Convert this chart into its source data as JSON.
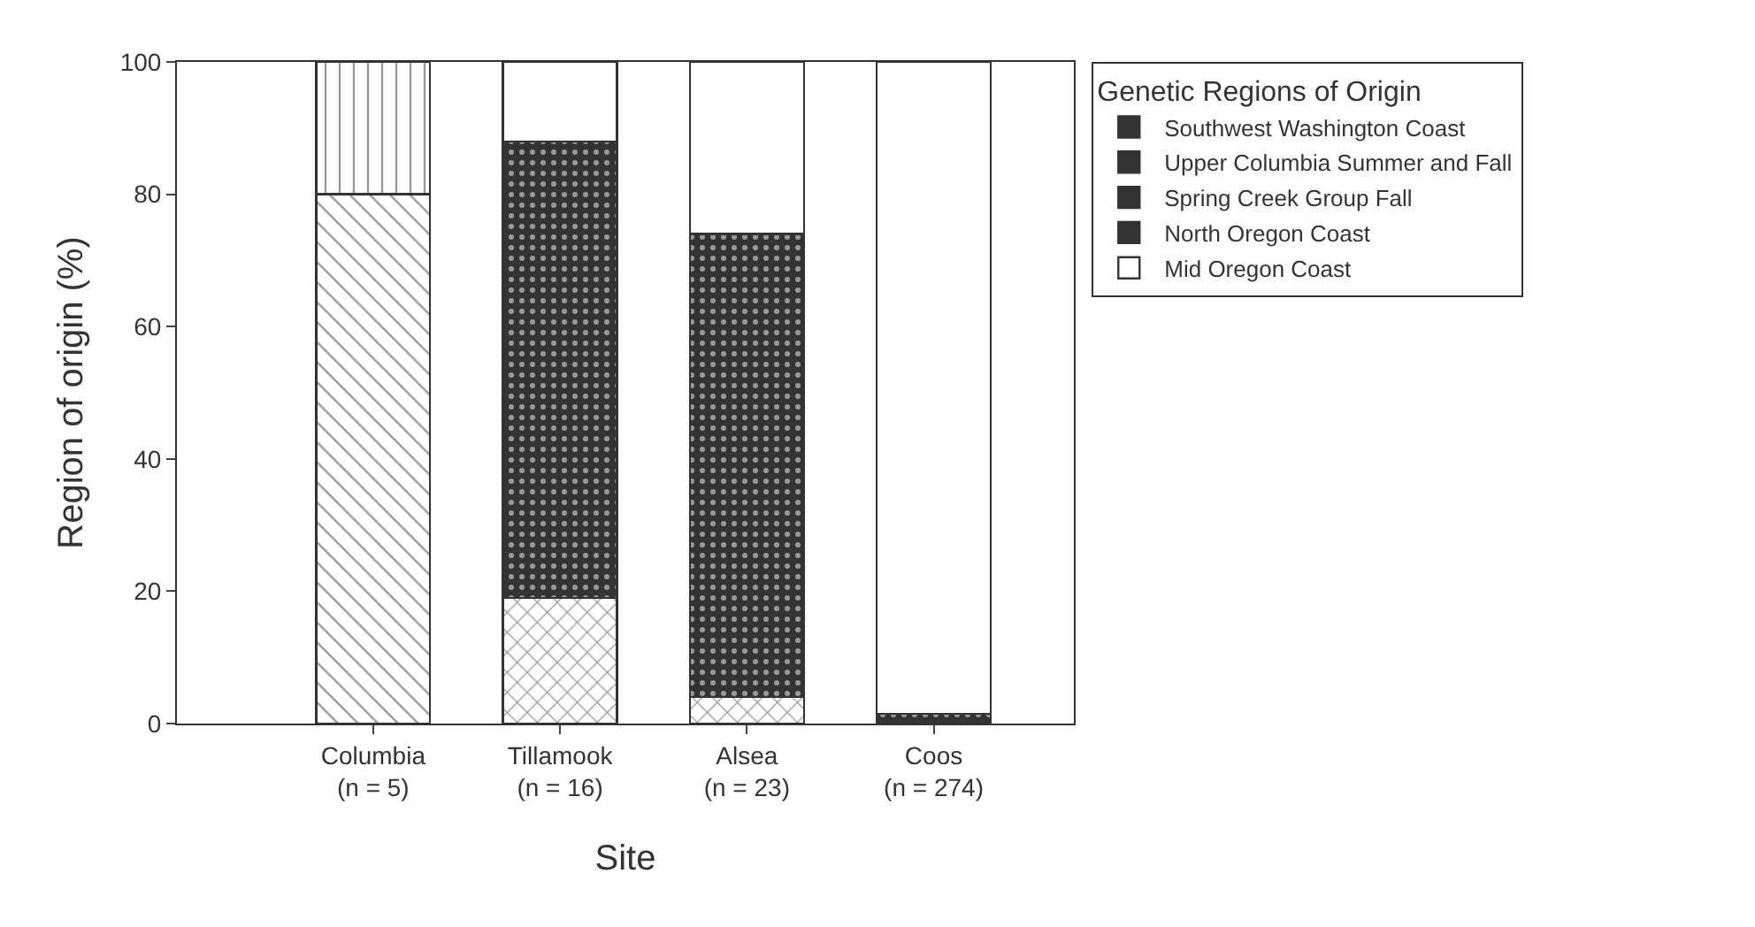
{
  "chart_data": {
    "type": "bar",
    "stacked": true,
    "categories": [
      "Columbia\n(n = 5)",
      "Tillamook\n(n = 16)",
      "Alsea\n(n = 23)",
      "Coos\n(n = 274)"
    ],
    "xlabel": "Site",
    "ylabel": "Region of origin (%)",
    "legend_title": "Genetic Regions of Origin",
    "ylim": [
      0,
      100
    ],
    "yticks": [
      0,
      20,
      40,
      60,
      80,
      100
    ],
    "legend": "top right",
    "series": [
      {
        "name": "Southwest Washington Coast",
        "color": "#333333",
        "values": [
          80,
          0,
          0,
          0
        ]
      },
      {
        "name": "Upper Columbia Summer and Fall",
        "color": "#333333",
        "values": [
          0,
          19,
          4,
          0
        ]
      },
      {
        "name": "Spring Creek Group Fall",
        "color": "#333333",
        "values": [
          20,
          0,
          0,
          0
        ]
      },
      {
        "name": "North Oregon Coast",
        "color": "#333333",
        "values": [
          0,
          69,
          70,
          1.5
        ]
      },
      {
        "name": "Mid Oregon Coast",
        "color": "#ffffff",
        "values": [
          0,
          12,
          26,
          98.5
        ]
      }
    ]
  }
}
